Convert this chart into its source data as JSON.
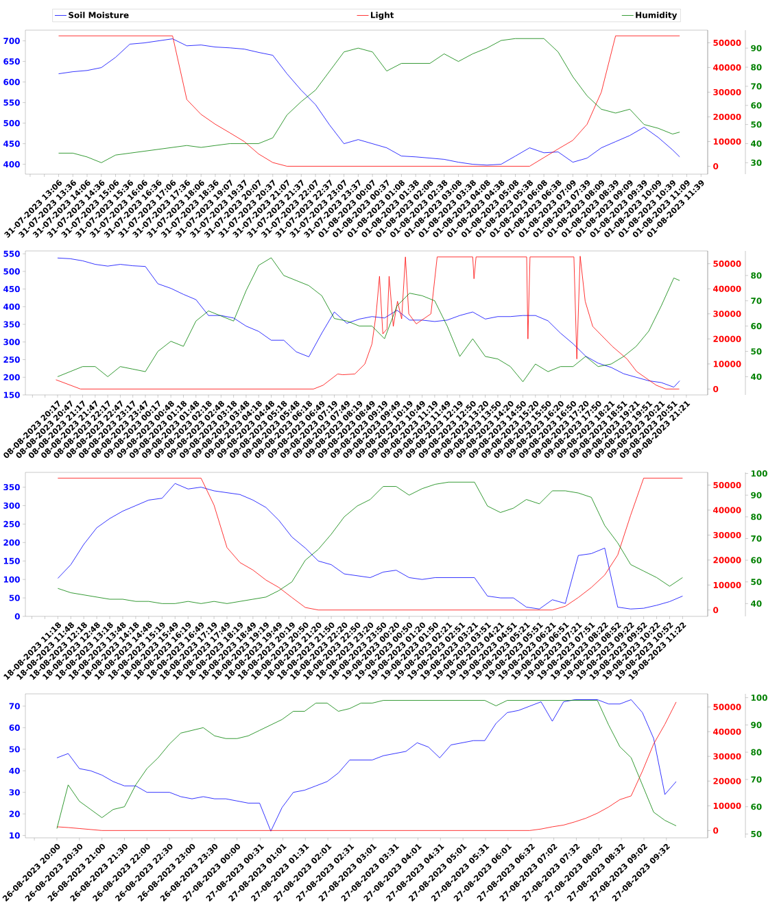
{
  "chart_data": [
    {
      "type": "line",
      "legend": "top",
      "x": [
        "2023-07-31T13:06",
        "2023-07-31T13:36",
        "2023-07-31T14:06",
        "2023-07-31T14:36",
        "2023-07-31T15:06",
        "2023-07-31T15:36",
        "2023-07-31T16:06",
        "2023-07-31T16:36",
        "2023-07-31T17:06",
        "2023-07-31T17:36",
        "2023-07-31T18:06",
        "2023-07-31T18:36",
        "2023-07-31T19:07",
        "2023-07-31T19:37",
        "2023-07-31T20:07",
        "2023-07-31T20:37",
        "2023-07-31T21:07",
        "2023-07-31T21:37",
        "2023-07-31T22:07",
        "2023-07-31T22:37",
        "2023-07-31T23:07",
        "2023-07-31T23:37",
        "2023-08-01T00:07",
        "2023-08-01T00:37",
        "2023-08-01T01:08",
        "2023-08-01T01:38",
        "2023-08-01T02:08",
        "2023-08-01T02:38",
        "2023-08-01T03:08",
        "2023-08-01T03:38",
        "2023-08-01T04:08",
        "2023-08-01T04:38",
        "2023-08-01T05:08",
        "2023-08-01T05:38",
        "2023-08-01T06:08",
        "2023-08-01T06:38",
        "2023-08-01T07:09",
        "2023-08-01T07:39",
        "2023-08-01T08:09",
        "2023-08-01T08:39",
        "2023-08-01T09:09",
        "2023-08-01T09:39",
        "2023-08-01T10:09",
        "2023-08-01T10:39",
        "2023-08-01T10:54"
      ],
      "xlim": [
        "2023-07-31T11:56",
        "2023-08-01T11:53"
      ],
      "xticks": [
        {
          "value": "2023-07-31T12:06",
          "label": null
        },
        {
          "value": "2023-07-31T12:36",
          "label": null
        },
        {
          "value": "2023-07-31T13:06",
          "label": "31-07-2023 13:06"
        },
        {
          "value": "2023-07-31T13:36",
          "label": "31-07-2023 13:36"
        },
        {
          "value": "2023-07-31T14:06",
          "label": "31-07-2023 14:06"
        },
        {
          "value": "2023-07-31T14:36",
          "label": "31-07-2023 14:36"
        },
        {
          "value": "2023-07-31T15:06",
          "label": "31-07-2023 15:06"
        },
        {
          "value": "2023-07-31T15:36",
          "label": "31-07-2023 15:36"
        },
        {
          "value": "2023-07-31T16:06",
          "label": "31-07-2023 16:06"
        },
        {
          "value": "2023-07-31T16:36",
          "label": "31-07-2023 16:36"
        },
        {
          "value": "2023-07-31T17:06",
          "label": "31-07-2023 17:06"
        },
        {
          "value": "2023-07-31T17:36",
          "label": "31-07-2023 17:36"
        },
        {
          "value": "2023-07-31T18:06",
          "label": "31-07-2023 18:06"
        },
        {
          "value": "2023-07-31T18:36",
          "label": "31-07-2023 18:36"
        },
        {
          "value": "2023-07-31T19:07",
          "label": "31-07-2023 19:07"
        },
        {
          "value": "2023-07-31T19:37",
          "label": "31-07-2023 19:37"
        },
        {
          "value": "2023-07-31T20:07",
          "label": "31-07-2023 20:07"
        },
        {
          "value": "2023-07-31T20:37",
          "label": "31-07-2023 20:37"
        },
        {
          "value": "2023-07-31T21:07",
          "label": "31-07-2023 21:07"
        },
        {
          "value": "2023-07-31T21:37",
          "label": "31-07-2023 21:37"
        },
        {
          "value": "2023-07-31T22:07",
          "label": "31-07-2023 22:07"
        },
        {
          "value": "2023-07-31T22:37",
          "label": "31-07-2023 22:37"
        },
        {
          "value": "2023-07-31T23:07",
          "label": "31-07-2023 23:07"
        },
        {
          "value": "2023-07-31T23:37",
          "label": "31-07-2023 23:37"
        },
        {
          "value": "2023-08-01T00:07",
          "label": "01-08-2023 00:07"
        },
        {
          "value": "2023-08-01T00:37",
          "label": "01-08-2023 00:37"
        },
        {
          "value": "2023-08-01T01:08",
          "label": "01-08-2023 01:08"
        },
        {
          "value": "2023-08-01T01:38",
          "label": "01-08-2023 01:38"
        },
        {
          "value": "2023-08-01T02:08",
          "label": "01-08-2023 02:08"
        },
        {
          "value": "2023-08-01T02:38",
          "label": "01-08-2023 02:38"
        },
        {
          "value": "2023-08-01T03:08",
          "label": "01-08-2023 03:08"
        },
        {
          "value": "2023-08-01T03:38",
          "label": "01-08-2023 03:38"
        },
        {
          "value": "2023-08-01T04:08",
          "label": "01-08-2023 04:08"
        },
        {
          "value": "2023-08-01T04:38",
          "label": "01-08-2023 04:38"
        },
        {
          "value": "2023-08-01T05:08",
          "label": "01-08-2023 05:08"
        },
        {
          "value": "2023-08-01T05:38",
          "label": "01-08-2023 05:38"
        },
        {
          "value": "2023-08-01T06:08",
          "label": "01-08-2023 06:08"
        },
        {
          "value": "2023-08-01T06:38",
          "label": "01-08-2023 06:38"
        },
        {
          "value": "2023-08-01T07:09",
          "label": "01-08-2023 07:09"
        },
        {
          "value": "2023-08-01T07:39",
          "label": "01-08-2023 07:39"
        },
        {
          "value": "2023-08-01T08:09",
          "label": "01-08-2023 08:09"
        },
        {
          "value": "2023-08-01T08:39",
          "label": "01-08-2023 08:39"
        },
        {
          "value": "2023-08-01T09:09",
          "label": "01-08-2023 09:09"
        },
        {
          "value": "2023-08-01T09:39",
          "label": "01-08-2023 09:39"
        },
        {
          "value": "2023-08-01T10:09",
          "label": "01-08-2023 10:09"
        },
        {
          "value": "2023-08-01T10:39",
          "label": "01-08-2023 10:39"
        },
        {
          "value": "2023-08-01T11:09",
          "label": "01-08-2023 11:09"
        },
        {
          "value": "2023-08-01T11:39",
          "label": "01-08-2023 11:39"
        }
      ],
      "ylim": [
        376,
        726
      ],
      "yticks": [
        400,
        450,
        500,
        550,
        600,
        650,
        700
      ],
      "y2lim": [
        -3200,
        55100
      ],
      "y2ticks": [
        0,
        10000,
        20000,
        30000,
        40000,
        50000
      ],
      "y3lim": [
        24,
        99.4
      ],
      "y3ticks": [
        30,
        40,
        50,
        60,
        70,
        80,
        90
      ],
      "series": [
        {
          "name": "Soil Moisture",
          "color": "#0000ff",
          "values": [
            620,
            625,
            628,
            635,
            660,
            692,
            695,
            700,
            705,
            688,
            690,
            685,
            683,
            680,
            672,
            665,
            620,
            580,
            545,
            495,
            450,
            460,
            450,
            440,
            420,
            418,
            415,
            412,
            405,
            400,
            398,
            400,
            420,
            440,
            428,
            430,
            405,
            415,
            440,
            455,
            470,
            490,
            465,
            435,
            418
          ]
        },
        {
          "name": "Light",
          "color": "#ff0000",
          "axis": "y2",
          "values": [
            52800,
            52800,
            52800,
            52800,
            52800,
            52800,
            52800,
            52800,
            52800,
            27000,
            21000,
            17000,
            13500,
            10000,
            5000,
            1500,
            0,
            0,
            0,
            0,
            0,
            0,
            0,
            0,
            0,
            0,
            0,
            0,
            0,
            0,
            0,
            0,
            0,
            0,
            3500,
            7000,
            10500,
            17000,
            30000,
            52800,
            52800,
            52800,
            52800,
            52800,
            52800
          ]
        },
        {
          "name": "Humidity",
          "color": "#008000",
          "axis": "y3",
          "values": [
            35,
            35,
            33,
            30,
            34,
            35,
            36,
            37,
            38,
            39,
            38,
            39,
            40,
            40,
            40,
            43,
            55,
            62,
            68,
            78,
            88,
            90,
            88,
            78,
            82,
            82,
            82,
            87,
            83,
            87,
            90,
            94,
            95,
            95,
            95,
            88,
            75,
            65,
            58,
            56,
            58,
            50,
            48,
            45,
            46
          ]
        }
      ]
    },
    {
      "type": "line",
      "x": [
        "2023-08-08T20:17",
        "2023-08-08T20:47",
        "2023-08-08T21:17",
        "2023-08-08T21:47",
        "2023-08-08T22:17",
        "2023-08-08T22:47",
        "2023-08-08T23:17",
        "2023-08-08T23:47",
        "2023-08-09T00:17",
        "2023-08-09T00:48",
        "2023-08-09T01:18",
        "2023-08-09T01:48",
        "2023-08-09T02:18",
        "2023-08-09T02:48",
        "2023-08-09T03:18",
        "2023-08-09T03:48",
        "2023-08-09T04:18",
        "2023-08-09T04:48",
        "2023-08-09T05:18",
        "2023-08-09T05:48",
        "2023-08-09T06:18",
        "2023-08-09T06:49",
        "2023-08-09T07:19",
        "2023-08-09T07:49",
        "2023-08-09T08:19",
        "2023-08-09T08:49",
        "2023-08-09T09:19",
        "2023-08-09T09:49",
        "2023-08-09T10:19",
        "2023-08-09T10:49",
        "2023-08-09T11:19",
        "2023-08-09T11:49",
        "2023-08-09T12:19",
        "2023-08-09T12:50",
        "2023-08-09T13:20",
        "2023-08-09T13:50",
        "2023-08-09T14:20",
        "2023-08-09T14:50",
        "2023-08-09T15:20",
        "2023-08-09T15:50",
        "2023-08-09T16:20",
        "2023-08-09T16:50",
        "2023-08-09T17:20",
        "2023-08-09T17:50",
        "2023-08-09T18:21",
        "2023-08-09T18:51",
        "2023-08-09T19:21",
        "2023-08-09T19:51",
        "2023-08-09T20:21",
        "2023-08-09T20:51",
        "2023-08-09T21:05"
      ],
      "xlim": [
        "2023-08-08T19:00",
        "2023-08-09T22:12"
      ],
      "xticks": [
        {
          "value": "2023-08-08T19:17",
          "label": null
        },
        {
          "value": "2023-08-08T19:47",
          "label": null
        },
        {
          "value": "2023-08-08T20:17",
          "label": "08-08-2023 20:17"
        },
        {
          "value": "2023-08-08T20:47",
          "label": "08-08-2023 20:47"
        },
        {
          "value": "2023-08-08T21:17",
          "label": "08-08-2023 21:17"
        },
        {
          "value": "2023-08-08T21:47",
          "label": "08-08-2023 21:47"
        },
        {
          "value": "2023-08-08T22:17",
          "label": "08-08-2023 22:17"
        },
        {
          "value": "2023-08-08T22:47",
          "label": "08-08-2023 22:47"
        },
        {
          "value": "2023-08-08T23:17",
          "label": "08-08-2023 23:17"
        },
        {
          "value": "2023-08-08T23:47",
          "label": "08-08-2023 23:47"
        },
        {
          "value": "2023-08-09T00:17",
          "label": "09-08-2023 00:17"
        },
        {
          "value": "2023-08-09T00:48",
          "label": "09-08-2023 00:48"
        },
        {
          "value": "2023-08-09T01:18",
          "label": "09-08-2023 01:18"
        },
        {
          "value": "2023-08-09T01:48",
          "label": "09-08-2023 01:48"
        },
        {
          "value": "2023-08-09T02:18",
          "label": "09-08-2023 02:18"
        },
        {
          "value": "2023-08-09T02:48",
          "label": "09-08-2023 02:48"
        },
        {
          "value": "2023-08-09T03:18",
          "label": "09-08-2023 03:18"
        },
        {
          "value": "2023-08-09T03:48",
          "label": "09-08-2023 03:48"
        },
        {
          "value": "2023-08-09T04:18",
          "label": "09-08-2023 04:18"
        },
        {
          "value": "2023-08-09T04:48",
          "label": "09-08-2023 04:48"
        },
        {
          "value": "2023-08-09T05:18",
          "label": "09-08-2023 05:18"
        },
        {
          "value": "2023-08-09T05:48",
          "label": "09-08-2023 05:48"
        },
        {
          "value": "2023-08-09T06:18",
          "label": "09-08-2023 06:18"
        },
        {
          "value": "2023-08-09T06:49",
          "label": "09-08-2023 06:49"
        },
        {
          "value": "2023-08-09T07:19",
          "label": "09-08-2023 07:19"
        },
        {
          "value": "2023-08-09T07:49",
          "label": "09-08-2023 07:49"
        },
        {
          "value": "2023-08-09T08:19",
          "label": "09-08-2023 08:19"
        },
        {
          "value": "2023-08-09T08:49",
          "label": "09-08-2023 08:49"
        },
        {
          "value": "2023-08-09T09:19",
          "label": "09-08-2023 09:19"
        },
        {
          "value": "2023-08-09T09:49",
          "label": "09-08-2023 09:49"
        },
        {
          "value": "2023-08-09T10:19",
          "label": "09-08-2023 10:19"
        },
        {
          "value": "2023-08-09T10:49",
          "label": "09-08-2023 10:49"
        },
        {
          "value": "2023-08-09T11:19",
          "label": "09-08-2023 11:19"
        },
        {
          "value": "2023-08-09T11:49",
          "label": "09-08-2023 11:49"
        },
        {
          "value": "2023-08-09T12:19",
          "label": "09-08-2023 12:19"
        },
        {
          "value": "2023-08-09T12:50",
          "label": "09-08-2023 12:50"
        },
        {
          "value": "2023-08-09T13:20",
          "label": "09-08-2023 13:20"
        },
        {
          "value": "2023-08-09T13:50",
          "label": "09-08-2023 13:50"
        },
        {
          "value": "2023-08-09T14:20",
          "label": "09-08-2023 14:20"
        },
        {
          "value": "2023-08-09T14:50",
          "label": "09-08-2023 14:50"
        },
        {
          "value": "2023-08-09T15:20",
          "label": "09-08-2023 15:20"
        },
        {
          "value": "2023-08-09T15:50",
          "label": "09-08-2023 15:50"
        },
        {
          "value": "2023-08-09T16:20",
          "label": "09-08-2023 16:20"
        },
        {
          "value": "2023-08-09T16:50",
          "label": "09-08-2023 16:50"
        },
        {
          "value": "2023-08-09T17:20",
          "label": "09-08-2023 17:20"
        },
        {
          "value": "2023-08-09T17:50",
          "label": "09-08-2023 17:50"
        },
        {
          "value": "2023-08-09T18:21",
          "label": "09-08-2023 18:21"
        },
        {
          "value": "2023-08-09T18:51",
          "label": "09-08-2023 18:51"
        },
        {
          "value": "2023-08-09T19:21",
          "label": "09-08-2023 19:21"
        },
        {
          "value": "2023-08-09T19:51",
          "label": "09-08-2023 19:51"
        },
        {
          "value": "2023-08-09T20:21",
          "label": "09-08-2023 20:21"
        },
        {
          "value": "2023-08-09T20:51",
          "label": "09-08-2023 20:51"
        },
        {
          "value": "2023-08-09T21:21",
          "label": "09-08-2023 21:21"
        }
      ],
      "ylim": [
        150,
        558
      ],
      "yticks": [
        150,
        200,
        250,
        300,
        350,
        400,
        450,
        500,
        550
      ],
      "y2lim": [
        -2350,
        55100
      ],
      "y2ticks": [
        0,
        10000,
        20000,
        30000,
        40000,
        50000
      ],
      "y3lim": [
        32.8,
        89.7
      ],
      "y3ticks": [
        40,
        50,
        60,
        70,
        80
      ],
      "series": [
        {
          "color": "#0000ff",
          "values": [
            538,
            536,
            530,
            520,
            515,
            520,
            516,
            514,
            465,
            452,
            435,
            420,
            375,
            375,
            368,
            345,
            330,
            305,
            305,
            272,
            258,
            325,
            385,
            353,
            365,
            372,
            368,
            390,
            362,
            362,
            358,
            362,
            375,
            385,
            365,
            372,
            372,
            375,
            375,
            360,
            325,
            295,
            260,
            240,
            228,
            210,
            200,
            190,
            185,
            172,
            190
          ]
        },
        {
          "color": "#ff0000",
          "axis": "y2",
          "x": [
            "2023-08-08T20:13",
            "2023-08-08T21:12",
            "2023-08-09T06:29",
            "2023-08-09T06:52",
            "2023-08-09T07:27",
            "2023-08-09T07:39",
            "2023-08-09T08:08",
            "2023-08-09T08:32",
            "2023-08-09T08:49",
            "2023-08-09T08:59",
            "2023-08-09T09:07",
            "2023-08-09T09:15",
            "2023-08-09T09:25",
            "2023-08-09T09:30",
            "2023-08-09T09:40",
            "2023-08-09T09:50",
            "2023-08-09T10:00",
            "2023-08-09T10:09",
            "2023-08-09T10:17",
            "2023-08-09T10:35",
            "2023-08-09T11:10",
            "2023-08-09T11:25",
            "2023-08-09T12:50",
            "2023-08-09T12:53",
            "2023-08-09T12:58",
            "2023-08-09T14:59",
            "2023-08-09T15:02",
            "2023-08-09T15:07",
            "2023-08-09T16:52",
            "2023-08-09T16:59",
            "2023-08-09T17:07",
            "2023-08-09T17:19",
            "2023-08-09T17:37",
            "2023-08-09T18:24",
            "2023-08-09T18:59",
            "2023-08-09T19:22",
            "2023-08-09T20:09",
            "2023-08-09T20:32",
            "2023-08-09T21:04"
          ],
          "values": [
            3700,
            0,
            0,
            1500,
            6000,
            5700,
            6000,
            10000,
            18000,
            30000,
            45000,
            22000,
            24000,
            45000,
            25000,
            35000,
            28000,
            52700,
            30000,
            26000,
            30000,
            52700,
            52700,
            44000,
            52700,
            52700,
            20000,
            52700,
            52700,
            12000,
            53000,
            35000,
            25000,
            17000,
            12000,
            7000,
            1500,
            0,
            0
          ]
        },
        {
          "color": "#008000",
          "axis": "y3",
          "values": [
            40,
            42,
            44,
            44,
            40,
            44,
            43,
            42,
            50,
            54,
            52,
            62,
            66,
            64,
            62,
            74,
            84,
            87,
            80,
            78,
            76,
            72,
            63,
            62,
            60,
            60,
            55,
            68,
            73,
            72,
            70,
            60,
            48,
            55,
            48,
            47,
            44,
            38,
            45,
            42,
            44,
            44,
            48,
            44,
            45,
            48,
            52,
            58,
            68,
            79,
            78
          ]
        }
      ]
    },
    {
      "type": "line",
      "x": [
        "2023-08-18T11:18",
        "2023-08-18T11:48",
        "2023-08-18T12:18",
        "2023-08-18T12:48",
        "2023-08-18T13:18",
        "2023-08-18T13:48",
        "2023-08-18T14:18",
        "2023-08-18T14:48",
        "2023-08-18T15:19",
        "2023-08-18T15:49",
        "2023-08-18T16:19",
        "2023-08-18T16:49",
        "2023-08-18T17:19",
        "2023-08-18T17:49",
        "2023-08-18T18:19",
        "2023-08-18T18:49",
        "2023-08-18T19:19",
        "2023-08-18T19:49",
        "2023-08-18T20:19",
        "2023-08-18T20:50",
        "2023-08-18T21:20",
        "2023-08-18T21:50",
        "2023-08-18T22:20",
        "2023-08-18T22:50",
        "2023-08-18T23:20",
        "2023-08-18T23:50",
        "2023-08-19T00:20",
        "2023-08-19T00:50",
        "2023-08-19T01:20",
        "2023-08-19T01:50",
        "2023-08-19T02:21",
        "2023-08-19T02:51",
        "2023-08-19T03:21",
        "2023-08-19T03:51",
        "2023-08-19T04:21",
        "2023-08-19T04:51",
        "2023-08-19T05:21",
        "2023-08-19T05:51",
        "2023-08-19T06:21",
        "2023-08-19T06:51",
        "2023-08-19T07:21",
        "2023-08-19T07:51",
        "2023-08-19T08:22",
        "2023-08-19T08:52",
        "2023-08-19T09:22",
        "2023-08-19T09:52",
        "2023-08-19T10:22",
        "2023-08-19T10:52",
        "2023-08-19T11:22"
      ],
      "xlim": [
        "2023-08-18T10:03",
        "2023-08-19T12:20"
      ],
      "xticks": [
        {
          "value": "2023-08-18T10:18",
          "label": null
        },
        {
          "value": "2023-08-18T10:48",
          "label": null
        },
        {
          "value": "2023-08-18T11:18",
          "label": "18-08-2023 11:18"
        },
        {
          "value": "2023-08-18T11:48",
          "label": "18-08-2023 11:48"
        },
        {
          "value": "2023-08-18T12:18",
          "label": "18-08-2023 12:18"
        },
        {
          "value": "2023-08-18T12:48",
          "label": "18-08-2023 12:48"
        },
        {
          "value": "2023-08-18T13:18",
          "label": "18-08-2023 13:18"
        },
        {
          "value": "2023-08-18T13:48",
          "label": "18-08-2023 13:48"
        },
        {
          "value": "2023-08-18T14:18",
          "label": "18-08-2023 14:18"
        },
        {
          "value": "2023-08-18T14:48",
          "label": "18-08-2023 14:48"
        },
        {
          "value": "2023-08-18T15:19",
          "label": "18-08-2023 15:19"
        },
        {
          "value": "2023-08-18T15:49",
          "label": "18-08-2023 15:49"
        },
        {
          "value": "2023-08-18T16:19",
          "label": "18-08-2023 16:19"
        },
        {
          "value": "2023-08-18T16:49",
          "label": "18-08-2023 16:49"
        },
        {
          "value": "2023-08-18T17:19",
          "label": "18-08-2023 17:19"
        },
        {
          "value": "2023-08-18T17:49",
          "label": "18-08-2023 17:49"
        },
        {
          "value": "2023-08-18T18:19",
          "label": "18-08-2023 18:19"
        },
        {
          "value": "2023-08-18T18:49",
          "label": "18-08-2023 18:49"
        },
        {
          "value": "2023-08-18T19:19",
          "label": "18-08-2023 19:19"
        },
        {
          "value": "2023-08-18T19:49",
          "label": "18-08-2023 19:49"
        },
        {
          "value": "2023-08-18T20:19",
          "label": "18-08-2023 20:19"
        },
        {
          "value": "2023-08-18T20:50",
          "label": "18-08-2023 20:50"
        },
        {
          "value": "2023-08-18T21:20",
          "label": "18-08-2023 21:20"
        },
        {
          "value": "2023-08-18T21:50",
          "label": "18-08-2023 21:50"
        },
        {
          "value": "2023-08-18T22:20",
          "label": "18-08-2023 22:20"
        },
        {
          "value": "2023-08-18T22:50",
          "label": "18-08-2023 22:50"
        },
        {
          "value": "2023-08-18T23:20",
          "label": "18-08-2023 23:20"
        },
        {
          "value": "2023-08-18T23:50",
          "label": "18-08-2023 23:50"
        },
        {
          "value": "2023-08-19T00:20",
          "label": "19-08-2023 00:20"
        },
        {
          "value": "2023-08-19T00:50",
          "label": "19-08-2023 00:50"
        },
        {
          "value": "2023-08-19T01:20",
          "label": "19-08-2023 01:20"
        },
        {
          "value": "2023-08-19T01:50",
          "label": "19-08-2023 01:50"
        },
        {
          "value": "2023-08-19T02:21",
          "label": "19-08-2023 02:21"
        },
        {
          "value": "2023-08-19T02:51",
          "label": "19-08-2023 02:51"
        },
        {
          "value": "2023-08-19T03:21",
          "label": "19-08-2023 03:21"
        },
        {
          "value": "2023-08-19T03:51",
          "label": "19-08-2023 03:51"
        },
        {
          "value": "2023-08-19T04:21",
          "label": "19-08-2023 04:21"
        },
        {
          "value": "2023-08-19T04:51",
          "label": "19-08-2023 04:51"
        },
        {
          "value": "2023-08-19T05:21",
          "label": "19-08-2023 05:21"
        },
        {
          "value": "2023-08-19T05:51",
          "label": "19-08-2023 05:51"
        },
        {
          "value": "2023-08-19T06:21",
          "label": "19-08-2023 06:21"
        },
        {
          "value": "2023-08-19T06:51",
          "label": "19-08-2023 06:51"
        },
        {
          "value": "2023-08-19T07:21",
          "label": "19-08-2023 07:21"
        },
        {
          "value": "2023-08-19T07:51",
          "label": "19-08-2023 07:51"
        },
        {
          "value": "2023-08-19T08:22",
          "label": "19-08-2023 08:22"
        },
        {
          "value": "2023-08-19T08:52",
          "label": "19-08-2023 08:52"
        },
        {
          "value": "2023-08-19T09:22",
          "label": "19-08-2023 09:22"
        },
        {
          "value": "2023-08-19T09:52",
          "label": "19-08-2023 09:52"
        },
        {
          "value": "2023-08-19T10:22",
          "label": "19-08-2023 10:22"
        },
        {
          "value": "2023-08-19T10:52",
          "label": "19-08-2023 10:52"
        },
        {
          "value": "2023-08-19T11:22",
          "label": "19-08-2023 11:22"
        }
      ],
      "ylim": [
        0,
        390
      ],
      "yticks": [
        0,
        50,
        100,
        150,
        200,
        250,
        300,
        350
      ],
      "y2lim": [
        -2550,
        55100
      ],
      "y2ticks": [
        0,
        10000,
        20000,
        30000,
        40000,
        50000
      ],
      "y3lim": [
        34.1,
        100.5
      ],
      "y3ticks": [
        40,
        50,
        60,
        70,
        80,
        90,
        100
      ],
      "series": [
        {
          "color": "#0000ff",
          "values": [
            103,
            140,
            195,
            240,
            265,
            285,
            300,
            315,
            320,
            360,
            345,
            350,
            340,
            335,
            330,
            315,
            295,
            260,
            215,
            185,
            150,
            140,
            115,
            110,
            105,
            120,
            125,
            105,
            100,
            105,
            105,
            105,
            105,
            55,
            50,
            50,
            25,
            20,
            45,
            35,
            165,
            170,
            185,
            25,
            20,
            22,
            30,
            40,
            55
          ]
        },
        {
          "color": "#ff0000",
          "axis": "y2",
          "values": [
            52800,
            52800,
            52800,
            52800,
            52800,
            52800,
            52800,
            52800,
            52800,
            52800,
            52800,
            52800,
            42000,
            25000,
            19000,
            16000,
            12000,
            9000,
            5000,
            1000,
            0,
            0,
            0,
            0,
            0,
            0,
            0,
            0,
            0,
            0,
            0,
            0,
            0,
            0,
            0,
            0,
            0,
            0,
            0,
            1500,
            5000,
            9000,
            14000,
            22000,
            38000,
            52800,
            52800,
            52800,
            52800
          ]
        },
        {
          "color": "#008000",
          "axis": "y3",
          "values": [
            47,
            45,
            44,
            43,
            42,
            42,
            41,
            41,
            40,
            40,
            41,
            40,
            41,
            40,
            41,
            42,
            43,
            46,
            50,
            60,
            65,
            72,
            80,
            85,
            88,
            94,
            94,
            90,
            93,
            95,
            96,
            96,
            96,
            85,
            82,
            84,
            88,
            86,
            92,
            92,
            91,
            89,
            76,
            68,
            58,
            55,
            52,
            48,
            52
          ]
        }
      ]
    },
    {
      "type": "line",
      "x": [
        "2023-08-26T20:00",
        "2023-08-26T20:15",
        "2023-08-26T20:30",
        "2023-08-26T20:45",
        "2023-08-26T21:00",
        "2023-08-26T21:15",
        "2023-08-26T21:30",
        "2023-08-26T21:45",
        "2023-08-26T22:00",
        "2023-08-26T22:15",
        "2023-08-26T22:30",
        "2023-08-26T22:45",
        "2023-08-26T23:00",
        "2023-08-26T23:15",
        "2023-08-26T23:30",
        "2023-08-26T23:45",
        "2023-08-27T00:00",
        "2023-08-27T00:15",
        "2023-08-27T00:30",
        "2023-08-27T00:45",
        "2023-08-27T01:00",
        "2023-08-27T01:15",
        "2023-08-27T01:30",
        "2023-08-27T01:45",
        "2023-08-27T02:00",
        "2023-08-27T02:15",
        "2023-08-27T02:30",
        "2023-08-27T02:45",
        "2023-08-27T03:00",
        "2023-08-27T03:15",
        "2023-08-27T03:30",
        "2023-08-27T03:45",
        "2023-08-27T04:00",
        "2023-08-27T04:15",
        "2023-08-27T04:30",
        "2023-08-27T04:45",
        "2023-08-27T05:00",
        "2023-08-27T05:15",
        "2023-08-27T05:30",
        "2023-08-27T05:45",
        "2023-08-27T06:00",
        "2023-08-27T06:15",
        "2023-08-27T06:30",
        "2023-08-27T06:45",
        "2023-08-27T07:00",
        "2023-08-27T07:15",
        "2023-08-27T07:30",
        "2023-08-27T07:45",
        "2023-08-27T08:00",
        "2023-08-27T08:15",
        "2023-08-27T08:30",
        "2023-08-27T08:45",
        "2023-08-27T09:00",
        "2023-08-27T09:15",
        "2023-08-27T09:30",
        "2023-08-27T09:45"
      ],
      "xlim": [
        "2023-08-26T19:18",
        "2023-08-27T10:27"
      ],
      "xticks": [
        {
          "value": "2023-08-26T19:30",
          "label": null
        },
        {
          "value": "2023-08-26T20:00",
          "label": "26-08-2023 20:00"
        },
        {
          "value": "2023-08-26T20:30",
          "label": "26-08-2023 20:30"
        },
        {
          "value": "2023-08-26T21:00",
          "label": "26-08-2023 21:00"
        },
        {
          "value": "2023-08-26T21:30",
          "label": "26-08-2023 21:30"
        },
        {
          "value": "2023-08-26T22:00",
          "label": "26-08-2023 22:00"
        },
        {
          "value": "2023-08-26T22:30",
          "label": "26-08-2023 22:30"
        },
        {
          "value": "2023-08-26T23:00",
          "label": "26-08-2023 23:00"
        },
        {
          "value": "2023-08-26T23:30",
          "label": "26-08-2023 23:30"
        },
        {
          "value": "2023-08-27T00:00",
          "label": "27-08-2023 00:00"
        },
        {
          "value": "2023-08-27T00:31",
          "label": "27-08-2023 00:31"
        },
        {
          "value": "2023-08-27T01:01",
          "label": "27-08-2023 01:01"
        },
        {
          "value": "2023-08-27T01:31",
          "label": "27-08-2023 01:31"
        },
        {
          "value": "2023-08-27T02:01",
          "label": "27-08-2023 02:01"
        },
        {
          "value": "2023-08-27T02:31",
          "label": "27-08-2023 02:31"
        },
        {
          "value": "2023-08-27T03:01",
          "label": "27-08-2023 03:01"
        },
        {
          "value": "2023-08-27T03:31",
          "label": "27-08-2023 03:31"
        },
        {
          "value": "2023-08-27T04:01",
          "label": "27-08-2023 04:01"
        },
        {
          "value": "2023-08-27T04:31",
          "label": "27-08-2023 04:31"
        },
        {
          "value": "2023-08-27T05:01",
          "label": "27-08-2023 05:01"
        },
        {
          "value": "2023-08-27T05:31",
          "label": "27-08-2023 05:31"
        },
        {
          "value": "2023-08-27T06:01",
          "label": "27-08-2023 06:01"
        },
        {
          "value": "2023-08-27T06:32",
          "label": "27-08-2023 06:32"
        },
        {
          "value": "2023-08-27T07:02",
          "label": "27-08-2023 07:02"
        },
        {
          "value": "2023-08-27T07:32",
          "label": "27-08-2023 07:32"
        },
        {
          "value": "2023-08-27T08:02",
          "label": "27-08-2023 08:02"
        },
        {
          "value": "2023-08-27T08:32",
          "label": "27-08-2023 08:32"
        },
        {
          "value": "2023-08-27T09:02",
          "label": "27-08-2023 09:02"
        },
        {
          "value": "2023-08-27T09:32",
          "label": "27-08-2023 09:32"
        }
      ],
      "ylim": [
        8.9,
        75.7
      ],
      "yticks": [
        10,
        20,
        30,
        40,
        50,
        60,
        70
      ],
      "y2lim": [
        -2960,
        55300
      ],
      "y2ticks": [
        0,
        10000,
        20000,
        30000,
        40000,
        50000
      ],
      "y3lim": [
        48.6,
        101.4
      ],
      "y3ticks": [
        50,
        60,
        70,
        80,
        90,
        100
      ],
      "series": [
        {
          "color": "#0000ff",
          "values": [
            46,
            48,
            41,
            40,
            38,
            35,
            33,
            33,
            30,
            30,
            30,
            28,
            27,
            28,
            27,
            27,
            26,
            25,
            25,
            12,
            23,
            30,
            31,
            33,
            35,
            39,
            45,
            45,
            45,
            47,
            48,
            49,
            53,
            51,
            46,
            52,
            53,
            54,
            54,
            62,
            67,
            68,
            70,
            72,
            63,
            72,
            73,
            73,
            73,
            71,
            71,
            73,
            67,
            55,
            29,
            35
          ]
        },
        {
          "color": "#ff0000",
          "axis": "y2",
          "values": [
            1500,
            1200,
            800,
            400,
            0,
            0,
            0,
            0,
            0,
            0,
            0,
            0,
            0,
            0,
            0,
            0,
            0,
            0,
            0,
            0,
            0,
            0,
            0,
            0,
            0,
            0,
            0,
            0,
            0,
            0,
            0,
            0,
            0,
            0,
            0,
            0,
            0,
            0,
            0,
            0,
            0,
            0,
            0,
            600,
            1500,
            2200,
            3500,
            5000,
            7000,
            9500,
            12500,
            14000,
            24000,
            35000,
            43000,
            52000
          ]
        },
        {
          "color": "#008000",
          "axis": "y3",
          "values": [
            52,
            68,
            62,
            59,
            56,
            59,
            60,
            68,
            74,
            78,
            83,
            87,
            88,
            89,
            86,
            85,
            85,
            86,
            88,
            90,
            92,
            95,
            95,
            98,
            98,
            95,
            96,
            98,
            98,
            99,
            99,
            99,
            99,
            99,
            99,
            99,
            99,
            99,
            99,
            97,
            99,
            99,
            99,
            99,
            99,
            99,
            99,
            99,
            99,
            90,
            82,
            78,
            68,
            58,
            55,
            53
          ]
        }
      ]
    }
  ]
}
